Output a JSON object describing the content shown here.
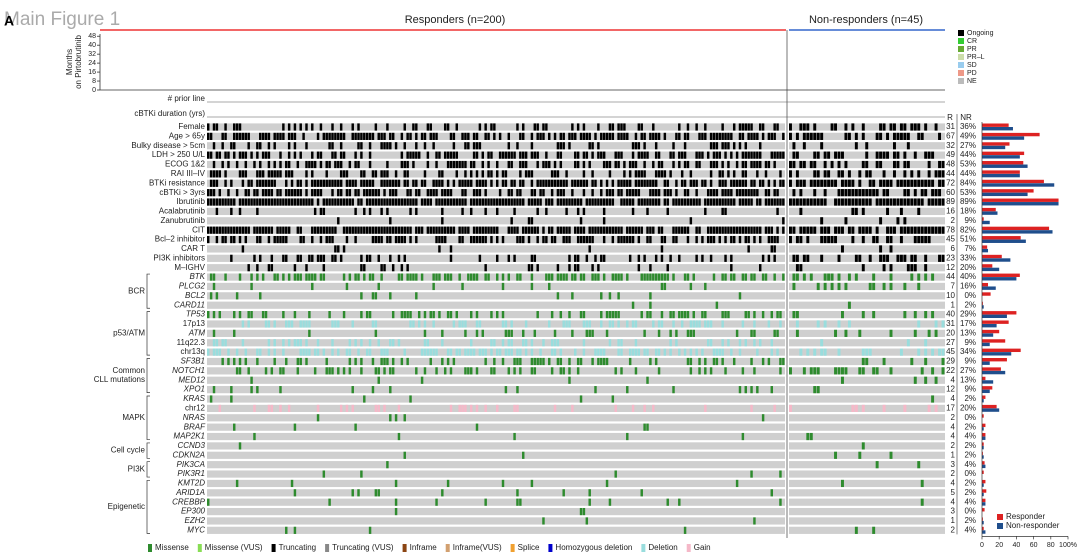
{
  "figure_title": "Main Figure 1",
  "panel": "A",
  "headers": {
    "responders": "Responders (n=200)",
    "non_responders": "Non-responders (n=45)"
  },
  "top_chart": {
    "ylabel": [
      "Months",
      "on Pirtobrutinib"
    ],
    "ylim": [
      0,
      50
    ],
    "yticks": [
      0,
      8,
      16,
      24,
      32,
      40,
      48
    ]
  },
  "response_legend": [
    {
      "name": "Ongoing",
      "color": "#000000"
    },
    {
      "name": "CR",
      "color": "#33cc33"
    },
    {
      "name": "PR",
      "color": "#66aa33"
    },
    {
      "name": "PR–L",
      "color": "#ccddaa"
    },
    {
      "name": "SD",
      "color": "#99ccee"
    },
    {
      "name": "PD",
      "color": "#ee9988"
    },
    {
      "name": "NE",
      "color": "#bbbbbb"
    }
  ],
  "track_labels": [
    "# prior line",
    "cBTKi duration (yrs)"
  ],
  "column_headers": [
    "R",
    "NR"
  ],
  "rows": [
    {
      "label": "Female",
      "r": 31,
      "nr": {
        "value": 36,
        "label": "36%"
      }
    },
    {
      "label": "Age > 65y",
      "r": 67,
      "nr": {
        "value": 49,
        "label": "49%"
      }
    },
    {
      "label": "Bulky disease > 5cm",
      "r": 32,
      "nr": {
        "value": 27,
        "label": "27%"
      }
    },
    {
      "label": "LDH > 250 U/L",
      "r": 49,
      "nr": {
        "value": 44,
        "label": "44%"
      }
    },
    {
      "label": "ECOG 1&2",
      "r": 48,
      "nr": {
        "value": 53,
        "label": "53%"
      }
    },
    {
      "label": "RAI III–IV",
      "r": 44,
      "nr": {
        "value": 44,
        "label": "44%"
      }
    },
    {
      "label": "BTKi resistance",
      "r": 72,
      "nr": {
        "value": 84,
        "label": "84%"
      }
    },
    {
      "label": "cBTKi > 3yrs",
      "r": 60,
      "nr": {
        "value": 53,
        "label": "53%"
      }
    },
    {
      "label": "Ibrutinib",
      "r": 89,
      "nr": {
        "value": 89,
        "label": "89%"
      }
    },
    {
      "label": "Acalabrutinib",
      "r": 16,
      "nr": {
        "value": 18,
        "label": "18%"
      }
    },
    {
      "label": "Zanubrutinib",
      "r": 2,
      "nr": {
        "value": 9,
        "label": "9%"
      }
    },
    {
      "label": "CIT",
      "r": 78,
      "nr": {
        "value": 82,
        "label": "82%"
      }
    },
    {
      "label": "Bcl–2 inhibitor",
      "r": 45,
      "nr": {
        "value": 51,
        "label": "51%"
      }
    },
    {
      "label": "CAR T",
      "r": 6,
      "nr": {
        "value": 7,
        "label": "7%"
      }
    },
    {
      "label": "PI3K inhibitors",
      "r": 23,
      "nr": {
        "value": 33,
        "label": "33%"
      }
    },
    {
      "label": "M–IGHV",
      "r": 12,
      "nr": {
        "value": 20,
        "label": "20%"
      }
    },
    {
      "label": "BTK",
      "r": 44,
      "nr": {
        "value": 40,
        "label": "40%"
      }
    },
    {
      "label": "PLCG2",
      "r": 7,
      "nr": {
        "value": 16,
        "label": "16%"
      }
    },
    {
      "label": "BCL2",
      "r": 10,
      "nr": {
        "value": 0,
        "label": "0%"
      }
    },
    {
      "label": "CARD11",
      "r": 1,
      "nr": {
        "value": 2,
        "label": "2%"
      }
    },
    {
      "label": "TP53",
      "r": 40,
      "nr": {
        "value": 29,
        "label": "29%"
      }
    },
    {
      "label": "17p13",
      "r": 31,
      "nr": {
        "value": 17,
        "label": "17%"
      }
    },
    {
      "label": "ATM",
      "r": 20,
      "nr": {
        "value": 13,
        "label": "13%"
      }
    },
    {
      "label": "11q22.3",
      "r": 27,
      "nr": {
        "value": 9,
        "label": "9%"
      }
    },
    {
      "label": "chr13q",
      "r": 45,
      "nr": {
        "value": 34,
        "label": "34%"
      }
    },
    {
      "label": "SF3B1",
      "r": 29,
      "nr": {
        "value": 9,
        "label": "9%"
      }
    },
    {
      "label": "NOTCH1",
      "r": 22,
      "nr": {
        "value": 27,
        "label": "27%"
      }
    },
    {
      "label": "MED12",
      "r": 4,
      "nr": {
        "value": 13,
        "label": "13%"
      }
    },
    {
      "label": "XPO1",
      "r": 12,
      "nr": {
        "value": 9,
        "label": "9%"
      }
    },
    {
      "label": "KRAS",
      "r": 4,
      "nr": {
        "value": 2,
        "label": "2%"
      }
    },
    {
      "label": "chr12",
      "r": 17,
      "nr": {
        "value": 20,
        "label": "20%"
      }
    },
    {
      "label": "NRAS",
      "r": 2,
      "nr": {
        "value": 0,
        "label": "0%"
      }
    },
    {
      "label": "BRAF",
      "r": 4,
      "nr": {
        "value": 2,
        "label": "2%"
      }
    },
    {
      "label": "MAP2K1",
      "r": 4,
      "nr": {
        "value": 4,
        "label": "4%"
      }
    },
    {
      "label": "CCND3",
      "r": 2,
      "nr": {
        "value": 2,
        "label": "2%"
      }
    },
    {
      "label": "CDKN2A",
      "r": 1,
      "nr": {
        "value": 2,
        "label": "2%"
      }
    },
    {
      "label": "PIK3CA",
      "r": 3,
      "nr": {
        "value": 4,
        "label": "4%"
      }
    },
    {
      "label": "PIK3R1",
      "r": 2,
      "nr": {
        "value": 0,
        "label": "0%"
      }
    },
    {
      "label": "KMT2D",
      "r": 4,
      "nr": {
        "value": 2,
        "label": "2%"
      }
    },
    {
      "label": "ARID1A",
      "r": 5,
      "nr": {
        "value": 2,
        "label": "2%"
      }
    },
    {
      "label": "CREBBP",
      "r": 4,
      "nr": {
        "value": 4,
        "label": "4%"
      }
    },
    {
      "label": "EP300",
      "r": 3,
      "nr": {
        "value": 0,
        "label": "0%"
      }
    },
    {
      "label": "EZH2",
      "r": 1,
      "nr": {
        "value": 2,
        "label": "2%"
      }
    },
    {
      "label": "MYC",
      "r": 2,
      "nr": {
        "value": 4,
        "label": "4%"
      }
    }
  ],
  "groups": [
    {
      "label": [
        "BCR"
      ],
      "first": 16,
      "last": 19
    },
    {
      "label": [
        "p53/ATM"
      ],
      "first": 20,
      "last": 24
    },
    {
      "label": [
        "Common",
        "CLL mutations"
      ],
      "first": 25,
      "last": 28
    },
    {
      "label": [
        "MAPK"
      ],
      "first": 29,
      "last": 33
    },
    {
      "label": [
        "Cell cycle"
      ],
      "first": 34,
      "last": 35
    },
    {
      "label": [
        "PI3K"
      ],
      "first": 36,
      "last": 37
    },
    {
      "label": [
        "Epigenetic"
      ],
      "first": 38,
      "last": 43
    }
  ],
  "bar_chart": {
    "series": [
      {
        "name": "Responder",
        "color": "#dd2222"
      },
      {
        "name": "Non-responder",
        "color": "#1f4e8c"
      }
    ],
    "xlim": [
      0,
      100
    ],
    "xticks": [
      0,
      20,
      40,
      60,
      80,
      {
        "value": 100,
        "label": "100%"
      }
    ]
  },
  "alteration_legend": [
    {
      "name": "Missense",
      "color": "#2e8b2e"
    },
    {
      "name": "Missense (VUS)",
      "color": "#88dd55"
    },
    {
      "name": "Truncating",
      "color": "#000000"
    },
    {
      "name": "Truncating (VUS)",
      "color": "#888888"
    },
    {
      "name": "Inframe",
      "color": "#8b4513"
    },
    {
      "name": "Inframe(VUS)",
      "color": "#d2a070"
    },
    {
      "name": "Splice",
      "color": "#f0a030"
    },
    {
      "name": "Homozygous deletion",
      "color": "#0000cc"
    },
    {
      "name": "Deletion",
      "color": "#99dddd"
    },
    {
      "name": "Gain",
      "color": "#f5b8c8"
    }
  ]
}
